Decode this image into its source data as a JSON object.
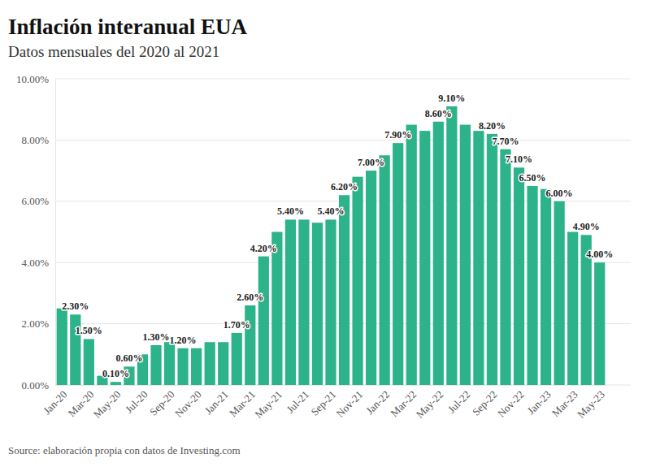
{
  "chart_data": {
    "type": "bar",
    "title": "Inflación interanual EUA",
    "subtitle": "Datos mensuales del 2020 al 2021",
    "source": "Source: elaboración propia con datos de Investing.com",
    "categories": [
      "Jan-20",
      null,
      "Mar-20",
      null,
      "May-20",
      null,
      "Jul-20",
      null,
      "Sep-20",
      null,
      "Nov-20",
      null,
      "Jan-21",
      null,
      "Mar-21",
      null,
      "May-21",
      null,
      "Jul-21",
      null,
      "Sep-21",
      null,
      "Nov-21",
      null,
      "Jan-22",
      null,
      "Mar-22",
      null,
      "May-22",
      null,
      "Jul-22",
      null,
      "Sep-22",
      null,
      "Nov-22",
      null,
      "Jan-23",
      null,
      "Mar-23",
      null,
      "May-23"
    ],
    "values": [
      2.5,
      2.3,
      1.5,
      0.3,
      0.1,
      0.6,
      1.0,
      1.3,
      1.4,
      1.2,
      1.2,
      1.4,
      1.4,
      1.7,
      2.6,
      4.2,
      5.0,
      5.4,
      5.4,
      5.3,
      5.4,
      6.2,
      6.8,
      7.0,
      7.5,
      7.9,
      8.5,
      8.3,
      8.6,
      9.1,
      8.5,
      8.3,
      8.2,
      7.7,
      7.1,
      6.5,
      6.4,
      6.0,
      5.0,
      4.9,
      4.0
    ],
    "value_labels": [
      null,
      "2.30%",
      "1.50%",
      null,
      "0.10%",
      "0.60%",
      null,
      "1.30%",
      null,
      "1.20%",
      null,
      null,
      null,
      "1.70%",
      "2.60%",
      "4.20%",
      null,
      "5.40%",
      null,
      null,
      "5.40%",
      "6.20%",
      null,
      "7.00%",
      null,
      "7.90%",
      null,
      null,
      "8.60%",
      "9.10%",
      null,
      null,
      "8.20%",
      "7.70%",
      "7.10%",
      "6.50%",
      null,
      "6.00%",
      null,
      "4.90%",
      "4.00%"
    ],
    "data_labels": true,
    "color": "#2db38a",
    "ylim": [
      0,
      10
    ],
    "yticks": [
      {
        "value": 0,
        "label": "0.00%"
      },
      {
        "value": 2,
        "label": "2.00%"
      },
      {
        "value": 4,
        "label": "4.00%"
      },
      {
        "value": 6,
        "label": "6.00%"
      },
      {
        "value": 8,
        "label": "8.00%"
      },
      {
        "value": 10,
        "label": "10.00%"
      }
    ],
    "grid": true
  }
}
